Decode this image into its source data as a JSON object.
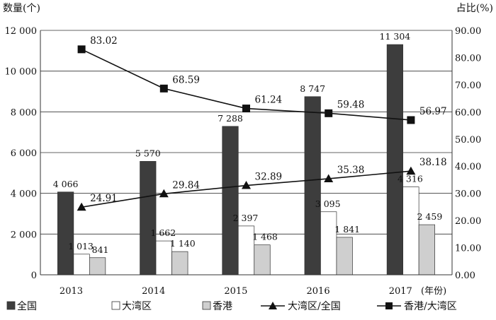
{
  "chart_data": {
    "type": "bar+line",
    "categories": [
      "2013",
      "2014",
      "2015",
      "2016",
      "2017"
    ],
    "x_unit": "(年份)",
    "left_axis": {
      "label": "数量(个)",
      "range": [
        0,
        12000
      ],
      "ticks": [
        0,
        2000,
        4000,
        6000,
        8000,
        10000,
        12000
      ],
      "tick_labels": [
        "0",
        "2 000",
        "4 000",
        "6 000",
        "8 000",
        "10 000",
        "12 000"
      ]
    },
    "right_axis": {
      "label": "占比(%)",
      "range": [
        0,
        90
      ],
      "ticks": [
        0,
        10,
        20,
        30,
        40,
        50,
        60,
        70,
        80,
        90
      ],
      "tick_labels": [
        "0.00",
        "10.00",
        "20.00",
        "30.00",
        "40.00",
        "50.00",
        "60.00",
        "70.00",
        "80.00",
        "90.00"
      ]
    },
    "bar_series": [
      {
        "name": "全国",
        "color": "#3d3d3d",
        "values": [
          4066,
          5570,
          7288,
          8747,
          11304
        ],
        "labels": [
          "4 066",
          "5 570",
          "7 288",
          "8 747",
          "11 304"
        ]
      },
      {
        "name": "大湾区",
        "color": "#ffffff",
        "values": [
          1013,
          1662,
          2397,
          3095,
          4316
        ],
        "labels": [
          "1 013",
          "1 662",
          "2 397",
          "3 095",
          "4 316"
        ]
      },
      {
        "name": "香港",
        "color": "#cfcfcf",
        "values": [
          841,
          1140,
          1468,
          1841,
          2459
        ],
        "labels": [
          "841",
          "1 140",
          "1 468",
          "1 841",
          "2 459"
        ]
      }
    ],
    "line_series": [
      {
        "name": "大湾区/全国",
        "marker": "triangle",
        "values": [
          24.91,
          29.84,
          32.89,
          35.38,
          38.18
        ],
        "labels": [
          "24.91",
          "29.84",
          "32.89",
          "35.38",
          "38.18"
        ]
      },
      {
        "name": "香港/大湾区",
        "marker": "square",
        "values": [
          83.02,
          68.59,
          61.24,
          59.48,
          56.97
        ],
        "labels": [
          "83.02",
          "68.59",
          "61.24",
          "59.48",
          "56.97"
        ]
      }
    ],
    "grid": true,
    "legend_position": "bottom"
  }
}
